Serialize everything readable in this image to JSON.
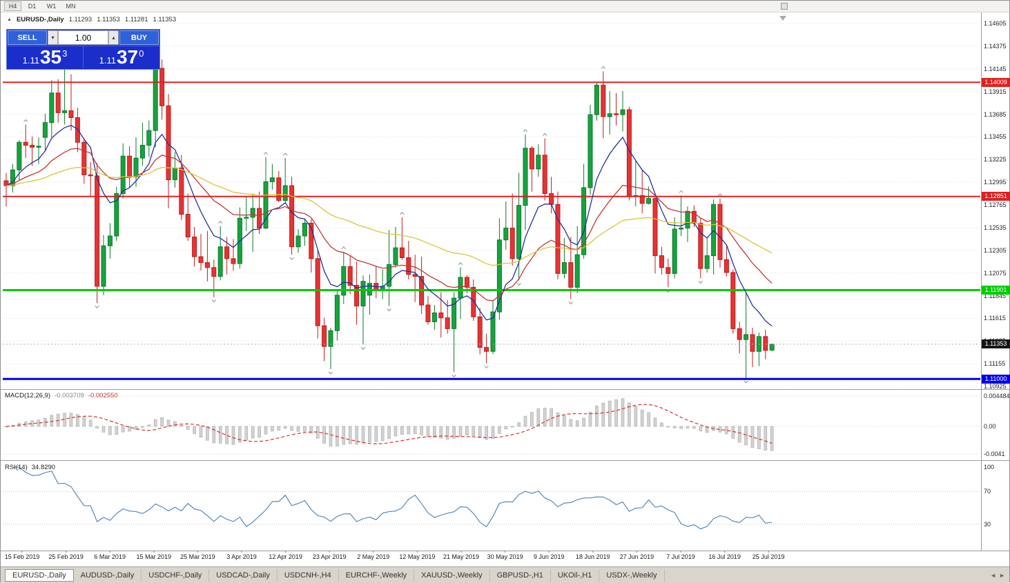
{
  "toolbar": {
    "timeframes": [
      {
        "label": "H4",
        "active": true
      },
      {
        "label": "D1",
        "active": false
      },
      {
        "label": "W1",
        "active": false
      },
      {
        "label": "MN",
        "active": false
      }
    ]
  },
  "chart": {
    "title": "EURUSD-,Daily",
    "collapse_icon": "▲",
    "ohlc": {
      "open": "1.11293",
      "high": "1.11353",
      "low": "1.11281",
      "close": "1.11353"
    },
    "trade_panel": {
      "sell_label": "SELL",
      "buy_label": "BUY",
      "volume": "1.00",
      "volume_down_icon": "▾",
      "volume_up_icon": "▴",
      "sell_price": {
        "prefix": "1.11",
        "pips": "35",
        "pipette": "3"
      },
      "buy_price": {
        "prefix": "1.11",
        "pips": "37",
        "pipette": "0"
      }
    },
    "price_axis": {
      "labels": [
        "1.14605",
        "1.14375",
        "1.14145",
        "1.13915",
        "1.13685",
        "1.13455",
        "1.13225",
        "1.12995",
        "1.12765",
        "1.12535",
        "1.12305",
        "1.12075",
        "1.11845",
        "1.11615",
        "1.11385",
        "1.11155",
        "1.10925"
      ]
    },
    "hlines": [
      {
        "label": "1.14009",
        "price": 1.14009,
        "color": "#e02020",
        "width": 2
      },
      {
        "label": "1.12851",
        "price": 1.12851,
        "color": "#e02020",
        "width": 2
      },
      {
        "label": "1.11901",
        "price": 1.11901,
        "color": "#00cc00",
        "width": 3
      },
      {
        "label": "1.11000",
        "price": 1.11,
        "color": "#0000ee",
        "width": 3
      }
    ],
    "current_price": {
      "value": 1.11353,
      "label": "1.11353",
      "color": "#141414"
    },
    "date_axis": [
      "15 Feb 2019",
      "25 Feb 2019",
      "6 Mar 2019",
      "15 Mar 2019",
      "25 Mar 2019",
      "3 Apr 2019",
      "12 Apr 2019",
      "23 Apr 2019",
      "2 May 2019",
      "12 May 2019",
      "21 May 2019",
      "30 May 2019",
      "9 Jun 2019",
      "18 Jun 2019",
      "27 Jun 2019",
      "7 Jul 2019",
      "16 Jul 2019",
      "25 Jul 2019"
    ]
  },
  "chart_data": {
    "type": "candlestick",
    "symbol": "EURUSD-",
    "period": "Daily",
    "y_axis": {
      "top": 1.14605,
      "bottom": 1.10925,
      "tick_step": 0.0023
    },
    "colors": {
      "up": "#17a33f",
      "up_border": "#0a7a2b",
      "down": "#e43434",
      "down_border": "#bb1c1c",
      "grid": "#e4e4e4",
      "bid_line": "#b0b0b0",
      "fractal": "#8e8e8e"
    },
    "moving_averages": [
      {
        "period": 8,
        "color": "#20309c"
      },
      {
        "period": 21,
        "color": "#c23535"
      },
      {
        "period": 55,
        "color": "#d9c53a"
      }
    ],
    "candles": [
      [
        1.1301,
        1.1309,
        1.1275,
        1.1296
      ],
      [
        1.1296,
        1.1318,
        1.1289,
        1.1312
      ],
      [
        1.1312,
        1.1342,
        1.1301,
        1.134
      ],
      [
        1.134,
        1.1358,
        1.1324,
        1.1337
      ],
      [
        1.1337,
        1.1346,
        1.1316,
        1.1335
      ],
      [
        1.1335,
        1.1345,
        1.1318,
        1.1336
      ],
      [
        1.1345,
        1.1369,
        1.1331,
        1.136
      ],
      [
        1.136,
        1.1403,
        1.1345,
        1.139
      ],
      [
        1.139,
        1.1404,
        1.136,
        1.137
      ],
      [
        1.137,
        1.142,
        1.1358,
        1.1372
      ],
      [
        1.1372,
        1.1409,
        1.1352,
        1.1365
      ],
      [
        1.1365,
        1.1375,
        1.133,
        1.134
      ],
      [
        1.134,
        1.1344,
        1.1298,
        1.1307
      ],
      [
        1.1307,
        1.132,
        1.1285,
        1.1306
      ],
      [
        1.1306,
        1.1319,
        1.1177,
        1.1194
      ],
      [
        1.1194,
        1.1246,
        1.1185,
        1.1235
      ],
      [
        1.1235,
        1.1258,
        1.1222,
        1.1245
      ],
      [
        1.1245,
        1.1295,
        1.124,
        1.1288
      ],
      [
        1.1288,
        1.1339,
        1.1283,
        1.1326
      ],
      [
        1.1326,
        1.1336,
        1.1294,
        1.1305
      ],
      [
        1.1305,
        1.1345,
        1.1295,
        1.1324
      ],
      [
        1.1324,
        1.136,
        1.1316,
        1.1337
      ],
      [
        1.1337,
        1.1362,
        1.1325,
        1.1352
      ],
      [
        1.1352,
        1.1448,
        1.1335,
        1.1415
      ],
      [
        1.1415,
        1.1424,
        1.1363,
        1.1377
      ],
      [
        1.1377,
        1.1389,
        1.1273,
        1.1302
      ],
      [
        1.1302,
        1.133,
        1.1294,
        1.1314
      ],
      [
        1.1314,
        1.1327,
        1.1261,
        1.1267
      ],
      [
        1.1267,
        1.1288,
        1.124,
        1.1244
      ],
      [
        1.1244,
        1.1254,
        1.1214,
        1.1224
      ],
      [
        1.1224,
        1.1247,
        1.121,
        1.1218
      ],
      [
        1.1218,
        1.125,
        1.1199,
        1.1213
      ],
      [
        1.1213,
        1.1221,
        1.1183,
        1.1204
      ],
      [
        1.1204,
        1.1255,
        1.12,
        1.1234
      ],
      [
        1.1234,
        1.1244,
        1.1206,
        1.1222
      ],
      [
        1.1222,
        1.1242,
        1.121,
        1.1217
      ],
      [
        1.1217,
        1.1274,
        1.1212,
        1.1263
      ],
      [
        1.1263,
        1.1285,
        1.125,
        1.1264
      ],
      [
        1.1264,
        1.1288,
        1.1229,
        1.1273
      ],
      [
        1.1273,
        1.129,
        1.1247,
        1.1253
      ],
      [
        1.1253,
        1.1325,
        1.1252,
        1.13
      ],
      [
        1.13,
        1.1318,
        1.1292,
        1.1304
      ],
      [
        1.1304,
        1.1311,
        1.1279,
        1.1281
      ],
      [
        1.1281,
        1.1324,
        1.1278,
        1.1296
      ],
      [
        1.1296,
        1.1305,
        1.1226,
        1.1234
      ],
      [
        1.1234,
        1.1252,
        1.1228,
        1.1245
      ],
      [
        1.1245,
        1.1262,
        1.1235,
        1.1258
      ],
      [
        1.1258,
        1.1262,
        1.1208,
        1.1222
      ],
      [
        1.1222,
        1.123,
        1.1141,
        1.1154
      ],
      [
        1.1154,
        1.1162,
        1.1118,
        1.1133
      ],
      [
        1.1133,
        1.1152,
        1.111,
        1.1149
      ],
      [
        1.1149,
        1.119,
        1.1139,
        1.1185
      ],
      [
        1.1185,
        1.1229,
        1.1176,
        1.1214
      ],
      [
        1.1214,
        1.1225,
        1.1186,
        1.1195
      ],
      [
        1.1195,
        1.1219,
        1.1155,
        1.1174
      ],
      [
        1.1174,
        1.1205,
        1.1135,
        1.1199
      ],
      [
        1.1185,
        1.1206,
        1.1165,
        1.1197
      ],
      [
        1.1197,
        1.1214,
        1.1182,
        1.119
      ],
      [
        1.119,
        1.1211,
        1.1181,
        1.1194
      ],
      [
        1.1194,
        1.1251,
        1.1174,
        1.1216
      ],
      [
        1.1216,
        1.1254,
        1.1213,
        1.1233
      ],
      [
        1.1233,
        1.1264,
        1.1221,
        1.1223
      ],
      [
        1.1223,
        1.124,
        1.1201,
        1.1206
      ],
      [
        1.1206,
        1.1226,
        1.1178,
        1.1204
      ],
      [
        1.1204,
        1.1224,
        1.1166,
        1.1175
      ],
      [
        1.1175,
        1.1184,
        1.1155,
        1.1158
      ],
      [
        1.1158,
        1.1175,
        1.115,
        1.1167
      ],
      [
        1.1167,
        1.1188,
        1.1142,
        1.1162
      ],
      [
        1.1162,
        1.118,
        1.1146,
        1.1151
      ],
      [
        1.1151,
        1.1188,
        1.1107,
        1.1182
      ],
      [
        1.1182,
        1.1213,
        1.1161,
        1.1203
      ],
      [
        1.1203,
        1.1205,
        1.1187,
        1.1193
      ],
      [
        1.1193,
        1.1201,
        1.1159,
        1.1163
      ],
      [
        1.1163,
        1.1172,
        1.1125,
        1.1132
      ],
      [
        1.1132,
        1.1146,
        1.1116,
        1.1128
      ],
      [
        1.1128,
        1.118,
        1.1125,
        1.1168
      ],
      [
        1.1168,
        1.1263,
        1.116,
        1.1241
      ],
      [
        1.1241,
        1.128,
        1.1231,
        1.1253
      ],
      [
        1.1253,
        1.1288,
        1.1215,
        1.1222
      ],
      [
        1.1222,
        1.1309,
        1.12,
        1.1276
      ],
      [
        1.1276,
        1.1348,
        1.1251,
        1.1334
      ],
      [
        1.1334,
        1.1336,
        1.129,
        1.1313
      ],
      [
        1.1313,
        1.1338,
        1.1305,
        1.1327
      ],
      [
        1.1327,
        1.1344,
        1.1281,
        1.1288
      ],
      [
        1.1288,
        1.1305,
        1.1268,
        1.1277
      ],
      [
        1.1277,
        1.129,
        1.1201,
        1.1207
      ],
      [
        1.1207,
        1.1243,
        1.1202,
        1.1218
      ],
      [
        1.1218,
        1.1244,
        1.1181,
        1.1193
      ],
      [
        1.1193,
        1.1255,
        1.1187,
        1.1226
      ],
      [
        1.1226,
        1.1318,
        1.1222,
        1.1294
      ],
      [
        1.1294,
        1.1378,
        1.1287,
        1.1368
      ],
      [
        1.1368,
        1.1401,
        1.1362,
        1.1398
      ],
      [
        1.1398,
        1.1412,
        1.1344,
        1.1366
      ],
      [
        1.1366,
        1.1392,
        1.1348,
        1.1369
      ],
      [
        1.1369,
        1.139,
        1.1357,
        1.1368
      ],
      [
        1.1368,
        1.1392,
        1.1351,
        1.1373
      ],
      [
        1.1373,
        1.1376,
        1.1281,
        1.1285
      ],
      [
        1.1285,
        1.1322,
        1.1275,
        1.1286
      ],
      [
        1.1286,
        1.1312,
        1.1268,
        1.1278
      ],
      [
        1.1278,
        1.1295,
        1.1277,
        1.1283
      ],
      [
        1.1283,
        1.1288,
        1.1207,
        1.1225
      ],
      [
        1.1225,
        1.1234,
        1.1206,
        1.1213
      ],
      [
        1.1213,
        1.1222,
        1.1193,
        1.1207
      ],
      [
        1.1207,
        1.1264,
        1.1202,
        1.1252
      ],
      [
        1.1252,
        1.1286,
        1.1245,
        1.1253
      ],
      [
        1.1253,
        1.1275,
        1.1239,
        1.127
      ],
      [
        1.127,
        1.1276,
        1.1254,
        1.1258
      ],
      [
        1.1258,
        1.1263,
        1.1202,
        1.1212
      ],
      [
        1.1212,
        1.1243,
        1.1208,
        1.1225
      ],
      [
        1.1225,
        1.1282,
        1.1206,
        1.1277
      ],
      [
        1.1277,
        1.1283,
        1.1213,
        1.1221
      ],
      [
        1.1221,
        1.1235,
        1.1204,
        1.1208
      ],
      [
        1.1208,
        1.1211,
        1.1146,
        1.1151
      ],
      [
        1.1151,
        1.1158,
        1.1126,
        1.114
      ],
      [
        1.114,
        1.1188,
        1.1101,
        1.1145
      ],
      [
        1.1145,
        1.1152,
        1.1112,
        1.1128
      ],
      [
        1.1128,
        1.1147,
        1.1113,
        1.1143
      ],
      [
        1.1143,
        1.115,
        1.112,
        1.1129
      ],
      [
        1.11293,
        1.11353,
        1.11281,
        1.11353
      ]
    ],
    "indicators": {
      "macd": {
        "label": "MACD(12,26,9)",
        "value_main": "-0.003709",
        "value_signal": "-0.002550",
        "axis": [
          "0.004484",
          "0.00",
          "-0.0041"
        ],
        "histogram_color": "#d2d2d2",
        "histogram_border": "#a8a8a8",
        "signal_color": "#d83030"
      },
      "rsi": {
        "label": "RSI(14)",
        "value": "34.8290",
        "axis": [
          "100",
          "70",
          "30"
        ],
        "levels": [
          70,
          30
        ],
        "color": "#4a7fb0",
        "level_color": "#c4c4c4"
      }
    }
  },
  "tabs": {
    "items": [
      {
        "label": "EURUSD-,Daily",
        "active": true
      },
      {
        "label": "AUDUSD-,Daily",
        "active": false
      },
      {
        "label": "USDCHF-,Daily",
        "active": false
      },
      {
        "label": "USDCAD-,Daily",
        "active": false
      },
      {
        "label": "USDCNH-,H4",
        "active": false
      },
      {
        "label": "EURCHF-,Weekly",
        "active": false
      },
      {
        "label": "XAUUSD-,Weekly",
        "active": false
      },
      {
        "label": "GBPUSD-,H1",
        "active": false
      },
      {
        "label": "UKOil-,H1",
        "active": false
      },
      {
        "label": "USDX-,Weekly",
        "active": false
      }
    ],
    "scroll_left": "◄",
    "scroll_right": "►"
  }
}
